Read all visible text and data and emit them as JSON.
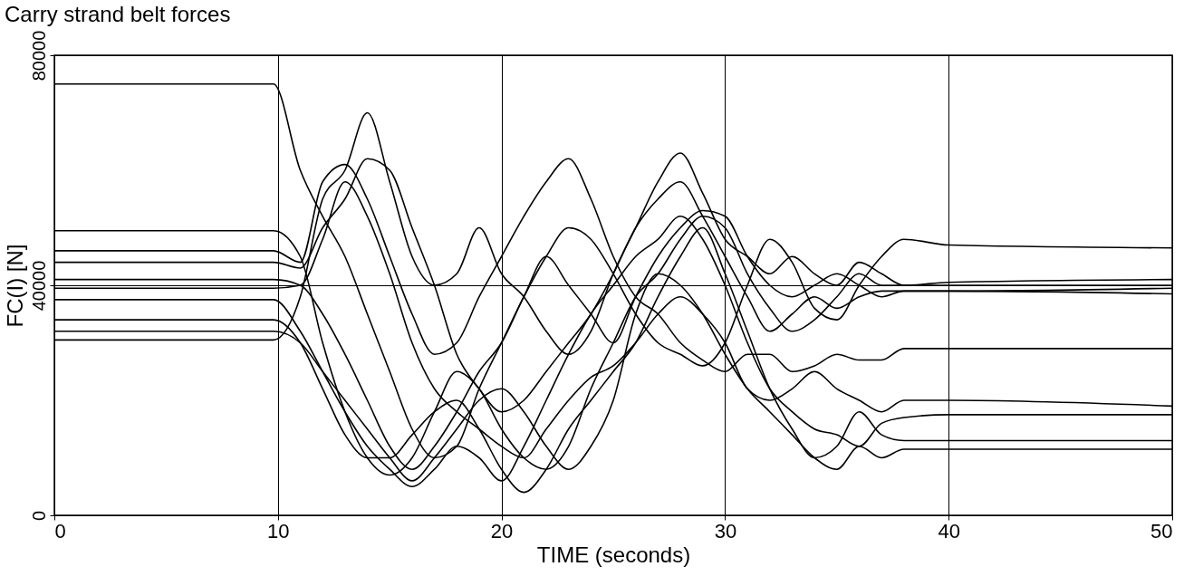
{
  "chart_data": {
    "type": "line",
    "title": "Carry strand belt forces",
    "xlabel": "TIME (seconds)",
    "ylabel": "FC(I) [N]",
    "x": [
      0,
      9.8,
      11,
      12,
      13,
      14,
      15,
      16,
      17,
      18,
      19,
      20,
      21,
      22,
      23,
      24,
      25,
      26,
      27,
      28,
      29,
      30,
      31,
      32,
      33,
      34,
      35,
      36,
      37,
      38,
      40,
      50
    ],
    "series": [
      {
        "color": "#000000",
        "values": [
          75000,
          75000,
          60000,
          52000,
          45000,
          35000,
          25000,
          15000,
          10000,
          12000,
          22000,
          30000,
          38000,
          45000,
          50000,
          48000,
          42000,
          35000,
          30000,
          28000,
          26000,
          30000,
          40000,
          48000,
          44000,
          36000,
          34000,
          40000,
          45000,
          48000,
          47000,
          46500
        ]
      },
      {
        "color": "#000000",
        "values": [
          49500,
          49500,
          45000,
          30000,
          18000,
          10000,
          7000,
          10000,
          18000,
          25000,
          22000,
          15000,
          10000,
          8000,
          12000,
          22000,
          30000,
          38000,
          42000,
          48000,
          52000,
          50000,
          42000,
          36000,
          32000,
          34000,
          38000,
          42000,
          40000,
          40000,
          40000,
          40000
        ]
      },
      {
        "color": "#000000",
        "values": [
          46000,
          46000,
          44000,
          58000,
          61000,
          55000,
          45000,
          35000,
          28000,
          30000,
          38000,
          45000,
          52000,
          58000,
          62000,
          55000,
          45000,
          38000,
          35000,
          30000,
          27000,
          25000,
          28000,
          28000,
          25000,
          26000,
          28000,
          27000,
          27000,
          29000,
          29000,
          29000
        ]
      },
      {
        "color": "#000000",
        "values": [
          44000,
          44000,
          43000,
          50000,
          55000,
          62000,
          60000,
          50000,
          40000,
          28000,
          22000,
          18000,
          20000,
          25000,
          30000,
          35000,
          42000,
          50000,
          55000,
          58000,
          52000,
          45000,
          38000,
          32000,
          35000,
          38000,
          36000,
          38000,
          39000,
          39000,
          39000,
          38500
        ]
      },
      {
        "color": "#000000",
        "values": [
          41000,
          41000,
          40000,
          35000,
          28000,
          20000,
          12000,
          8000,
          12000,
          18000,
          25000,
          30000,
          38000,
          45000,
          40000,
          35000,
          30000,
          38000,
          45000,
          50000,
          53000,
          52000,
          45000,
          40000,
          38000,
          40000,
          42000,
          40000,
          38000,
          39000,
          39000,
          39500
        ]
      },
      {
        "color": "#000000",
        "values": [
          39500,
          39500,
          40000,
          48000,
          58000,
          52000,
          42000,
          30000,
          22000,
          18000,
          15000,
          12000,
          10000,
          15000,
          20000,
          24000,
          26000,
          30000,
          35000,
          38000,
          35000,
          30000,
          22000,
          20000,
          22000,
          25000,
          22000,
          20000,
          18000,
          20000,
          20000,
          19000
        ]
      },
      {
        "color": "#000000",
        "values": [
          37500,
          37500,
          32000,
          25000,
          18000,
          12000,
          8000,
          5000,
          8000,
          12000,
          10000,
          6000,
          12000,
          20000,
          28000,
          35000,
          40000,
          45000,
          48000,
          52000,
          48000,
          40000,
          30000,
          22000,
          18000,
          15000,
          14000,
          12000,
          16000,
          17000,
          17500,
          17500
        ]
      },
      {
        "color": "#000000",
        "values": [
          34000,
          34000,
          30000,
          22000,
          14000,
          10000,
          10000,
          14000,
          18000,
          20000,
          15000,
          8000,
          4000,
          8000,
          15000,
          20000,
          25000,
          30000,
          38000,
          45000,
          50000,
          42000,
          32000,
          22000,
          15000,
          10000,
          12000,
          18000,
          14000,
          13000,
          13000,
          13000
        ]
      },
      {
        "color": "#000000",
        "values": [
          32000,
          32000,
          30000,
          25000,
          20000,
          15000,
          10000,
          6000,
          10000,
          15000,
          20000,
          22000,
          18000,
          12000,
          8000,
          12000,
          20000,
          35000,
          42000,
          40000,
          35000,
          28000,
          22000,
          18000,
          14000,
          10000,
          8000,
          12000,
          10000,
          11500,
          11500,
          11500
        ]
      },
      {
        "color": "#000000",
        "values": [
          30500,
          30500,
          38000,
          55000,
          60000,
          70000,
          58000,
          45000,
          40000,
          42000,
          50000,
          42000,
          38000,
          32000,
          28000,
          32000,
          42000,
          50000,
          58000,
          63000,
          56000,
          48000,
          45000,
          42000,
          45000,
          42000,
          40000,
          44000,
          42000,
          40000,
          40500,
          41000
        ]
      }
    ],
    "xlim": [
      0,
      50
    ],
    "xticks": [
      0,
      10,
      20,
      30,
      40,
      50
    ],
    "ylim": [
      0,
      80000
    ],
    "yticks": [
      0,
      40000,
      80000
    ],
    "grid": true,
    "line_style": "solid"
  }
}
